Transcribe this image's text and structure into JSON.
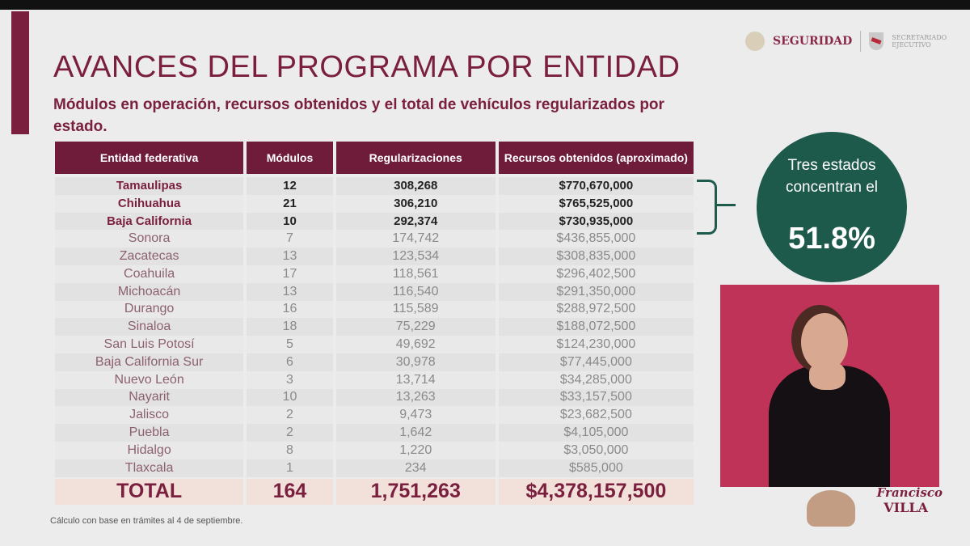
{
  "header": {
    "logo_seguridad": "SEGURIDAD",
    "logo_secretariado": "SECRETARIADO EJECUTIVO",
    "title": "AVANCES DEL PROGRAMA POR ENTIDAD",
    "subtitle": "Módulos en operación, recursos obtenidos y el total de vehículos regularizados por estado."
  },
  "table": {
    "columns": [
      "Entidad federativa",
      "Módulos",
      "Regularizaciones",
      "Recursos obtenidos (aproximado)"
    ],
    "rows": [
      [
        "Tamaulipas",
        "12",
        "308,268",
        "$770,670,000"
      ],
      [
        "Chihuahua",
        "21",
        "306,210",
        "$765,525,000"
      ],
      [
        "Baja California",
        "10",
        "292,374",
        "$730,935,000"
      ],
      [
        "Sonora",
        "7",
        "174,742",
        "$436,855,000"
      ],
      [
        "Zacatecas",
        "13",
        "123,534",
        "$308,835,000"
      ],
      [
        "Coahuila",
        "17",
        "118,561",
        "$296,402,500"
      ],
      [
        "Michoacán",
        "13",
        "116,540",
        "$291,350,000"
      ],
      [
        "Durango",
        "16",
        "115,589",
        "$288,972,500"
      ],
      [
        "Sinaloa",
        "18",
        "75,229",
        "$188,072,500"
      ],
      [
        "San Luis Potosí",
        "5",
        "49,692",
        "$124,230,000"
      ],
      [
        "Baja California Sur",
        "6",
        "30,978",
        "$77,445,000"
      ],
      [
        "Nuevo León",
        "3",
        "13,714",
        "$34,285,000"
      ],
      [
        "Nayarit",
        "10",
        "13,263",
        "$33,157,500"
      ],
      [
        "Jalisco",
        "2",
        "9,473",
        "$23,682,500"
      ],
      [
        "Puebla",
        "2",
        "1,642",
        "$4,105,000"
      ],
      [
        "Hidalgo",
        "8",
        "1,220",
        "$3,050,000"
      ],
      [
        "Tlaxcala",
        "1",
        "234",
        "$585,000"
      ]
    ],
    "total": [
      "TOTAL",
      "164",
      "1,751,263",
      "$4,378,157,500"
    ]
  },
  "footnote": "Cálculo con base en trámites al 4 de septiembre.",
  "callout": {
    "text": "Tres estados concentran el",
    "percent": "51.8%"
  },
  "bottom_logo": {
    "line1": "Francisco",
    "line2": "VILLA"
  },
  "colors": {
    "maroon": "#7a1f3d",
    "green": "#1e5a4c",
    "interpreter_bg": "#c03358"
  }
}
